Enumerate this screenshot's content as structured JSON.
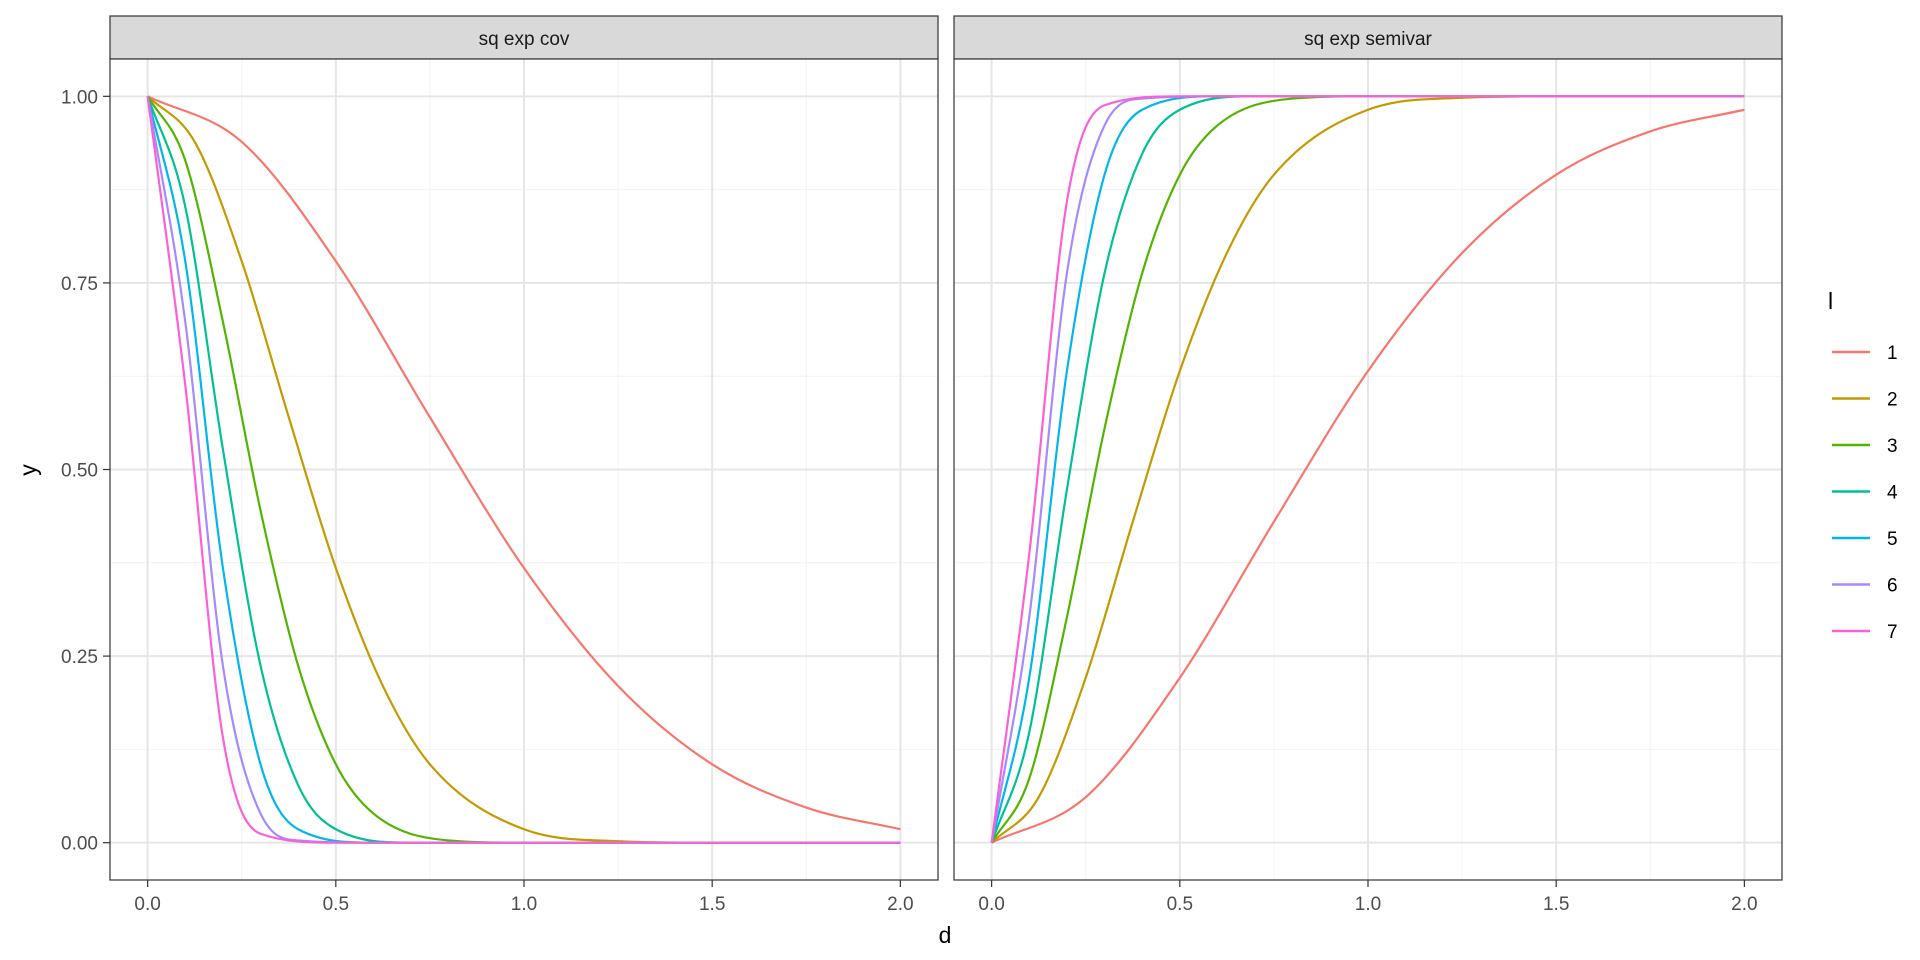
{
  "chart_data": {
    "type": "line",
    "xlabel": "d",
    "ylabel": "y",
    "xlim": [
      0,
      2
    ],
    "ylim": [
      0,
      1
    ],
    "x_ticks": [
      "0.0",
      "0.5",
      "1.0",
      "1.5",
      "2.0"
    ],
    "y_ticks": [
      "0.00",
      "0.25",
      "0.50",
      "0.75",
      "1.00"
    ],
    "grid": true,
    "legend": {
      "title": "l",
      "position": "right",
      "entries": [
        {
          "label": "1",
          "color": "#F8766D"
        },
        {
          "label": "2",
          "color": "#C49A00"
        },
        {
          "label": "3",
          "color": "#53B400"
        },
        {
          "label": "4",
          "color": "#00C094"
        },
        {
          "label": "5",
          "color": "#00B6EB"
        },
        {
          "label": "6",
          "color": "#A58AFF"
        },
        {
          "label": "7",
          "color": "#FB61D7"
        }
      ]
    },
    "panels": [
      {
        "title": "sq exp cov",
        "series": [
          {
            "l": "1",
            "x": [
              0,
              0.25,
              0.5,
              0.75,
              1,
              1.25,
              1.5,
              1.75,
              2
            ],
            "y": [
              1,
              0.939,
              0.779,
              0.57,
              0.368,
              0.21,
              0.105,
              0.047,
              0.018
            ]
          },
          {
            "l": "2",
            "x": [
              0,
              0.125,
              0.25,
              0.375,
              0.5,
              0.625,
              0.75,
              1,
              1.25,
              1.5,
              2
            ],
            "y": [
              1,
              0.939,
              0.779,
              0.57,
              0.368,
              0.21,
              0.105,
              0.018,
              0.002,
              0,
              0
            ]
          },
          {
            "l": "3",
            "x": [
              0,
              0.1,
              0.2,
              0.3,
              0.4,
              0.5,
              0.6,
              0.8,
              1,
              2
            ],
            "y": [
              1,
              0.914,
              0.698,
              0.445,
              0.237,
              0.105,
              0.039,
              0.003,
              0,
              0
            ]
          },
          {
            "l": "4",
            "x": [
              0,
              0.1,
              0.2,
              0.3,
              0.4,
              0.5,
              0.7,
              1,
              2
            ],
            "y": [
              1,
              0.852,
              0.527,
              0.237,
              0.077,
              0.018,
              0,
              0,
              0
            ]
          },
          {
            "l": "5",
            "x": [
              0,
              0.1,
              0.2,
              0.3,
              0.4,
              0.6,
              1,
              2
            ],
            "y": [
              1,
              0.779,
              0.368,
              0.105,
              0.018,
              0,
              0,
              0
            ]
          },
          {
            "l": "6",
            "x": [
              0,
              0.1,
              0.2,
              0.3,
              0.4,
              0.6,
              1,
              2
            ],
            "y": [
              1,
              0.698,
              0.237,
              0.039,
              0.003,
              0,
              0,
              0
            ]
          },
          {
            "l": "7",
            "x": [
              0,
              0.1,
              0.2,
              0.3,
              0.5,
              1,
              2
            ],
            "y": [
              1,
              0.613,
              0.141,
              0.012,
              0,
              0,
              0
            ]
          }
        ]
      },
      {
        "title": "sq exp semivar",
        "series": [
          {
            "l": "1",
            "x": [
              0,
              0.25,
              0.5,
              0.75,
              1,
              1.25,
              1.5,
              1.75,
              2
            ],
            "y": [
              0,
              0.061,
              0.221,
              0.43,
              0.632,
              0.79,
              0.895,
              0.953,
              0.982
            ]
          },
          {
            "l": "2",
            "x": [
              0,
              0.125,
              0.25,
              0.375,
              0.5,
              0.625,
              0.75,
              1,
              1.25,
              1.5,
              2
            ],
            "y": [
              0,
              0.061,
              0.221,
              0.43,
              0.632,
              0.79,
              0.895,
              0.982,
              0.998,
              1,
              1
            ]
          },
          {
            "l": "3",
            "x": [
              0,
              0.1,
              0.2,
              0.3,
              0.4,
              0.5,
              0.6,
              0.8,
              1,
              2
            ],
            "y": [
              0,
              0.086,
              0.302,
              0.555,
              0.763,
              0.895,
              0.961,
              0.997,
              1,
              1
            ]
          },
          {
            "l": "4",
            "x": [
              0,
              0.1,
              0.2,
              0.3,
              0.4,
              0.5,
              0.7,
              1,
              2
            ],
            "y": [
              0,
              0.148,
              0.473,
              0.763,
              0.923,
              0.982,
              1,
              1,
              1
            ]
          },
          {
            "l": "5",
            "x": [
              0,
              0.1,
              0.2,
              0.3,
              0.4,
              0.6,
              1,
              2
            ],
            "y": [
              0,
              0.221,
              0.632,
              0.895,
              0.982,
              1,
              1,
              1
            ]
          },
          {
            "l": "6",
            "x": [
              0,
              0.1,
              0.2,
              0.3,
              0.4,
              0.6,
              1,
              2
            ],
            "y": [
              0,
              0.302,
              0.763,
              0.961,
              0.997,
              1,
              1,
              1
            ]
          },
          {
            "l": "7",
            "x": [
              0,
              0.1,
              0.2,
              0.3,
              0.5,
              1,
              2
            ],
            "y": [
              0,
              0.387,
              0.859,
              0.988,
              1,
              1,
              1
            ]
          }
        ]
      }
    ]
  }
}
